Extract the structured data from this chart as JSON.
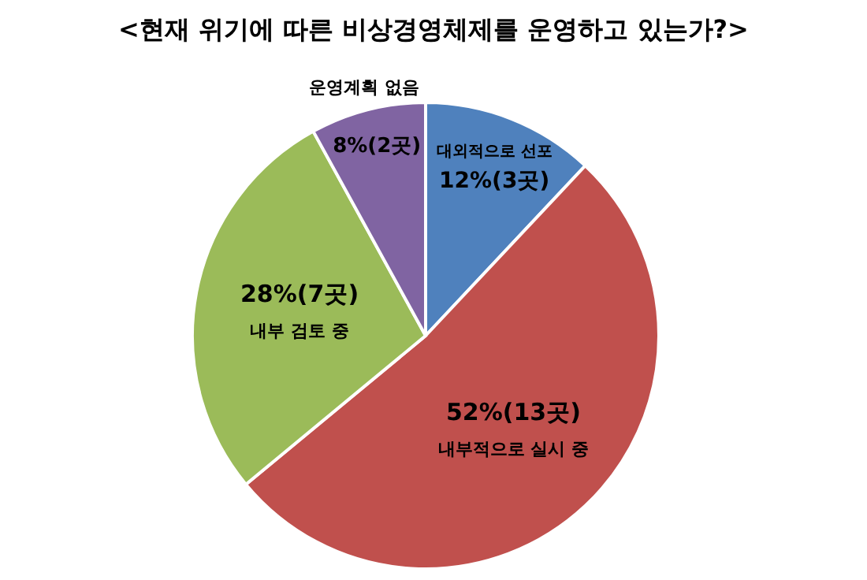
{
  "chart_data": {
    "type": "pie",
    "title": "<현재 위기에 따른 비상경영체제를 운영하고 있는가?>",
    "categories": [
      "대외적으로 선포",
      "내부적으로 실시 중",
      "내부 검토 중",
      "운영계획 없음"
    ],
    "values": [
      12,
      52,
      28,
      8
    ],
    "value_labels": [
      "12%(3곳)",
      "52%(13곳)",
      "28%(7곳)",
      "8%(2곳)"
    ],
    "colors": [
      "#4f81bd",
      "#c0504d",
      "#9bbb59",
      "#8064a2"
    ]
  }
}
